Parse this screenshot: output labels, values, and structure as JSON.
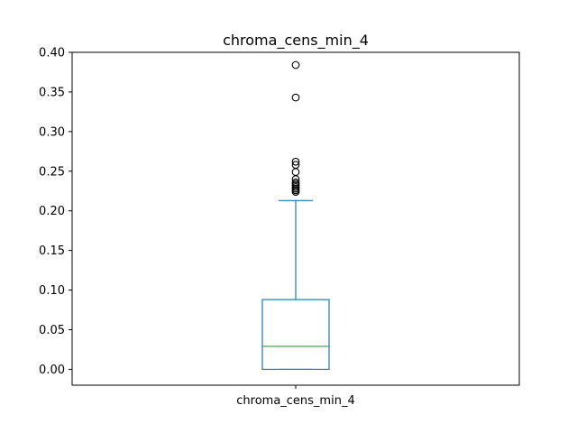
{
  "chart_data": {
    "type": "box",
    "title": "chroma_cens_min_4",
    "xlabel": "",
    "ylabel": "",
    "categories": [
      "chroma_cens_min_4"
    ],
    "ylim": [
      -0.02,
      0.4
    ],
    "yticks": [
      0.0,
      0.05,
      0.1,
      0.15,
      0.2,
      0.25,
      0.3,
      0.35,
      0.4
    ],
    "ytick_labels": [
      "0.00",
      "0.05",
      "0.10",
      "0.15",
      "0.20",
      "0.25",
      "0.30",
      "0.35",
      "0.40"
    ],
    "grid": false,
    "legend": "none",
    "boxes": [
      {
        "name": "chroma_cens_min_4",
        "whisker_low": 0.0,
        "q1": 0.0,
        "median": 0.029,
        "q3": 0.088,
        "whisker_high": 0.213,
        "outliers": [
          0.224,
          0.226,
          0.228,
          0.23,
          0.232,
          0.234,
          0.236,
          0.24,
          0.249,
          0.258,
          0.262,
          0.343,
          0.384
        ]
      }
    ],
    "colors": {
      "box": "#1f77b4",
      "median": "#2ca02c",
      "outlier": "#000000",
      "axes": "#000000"
    }
  }
}
